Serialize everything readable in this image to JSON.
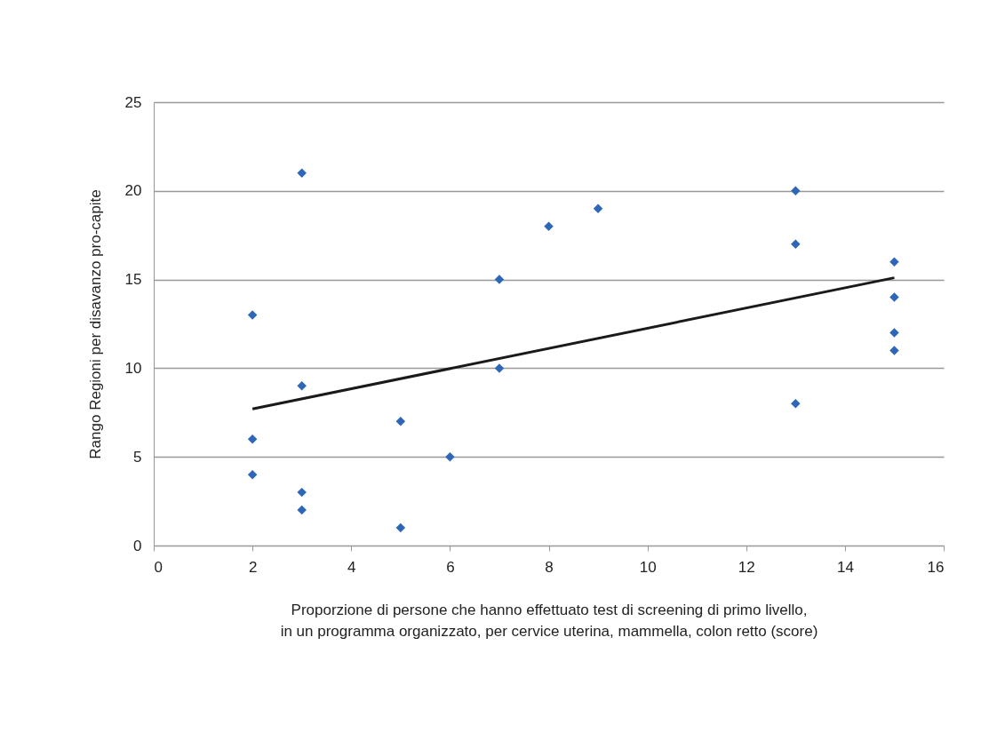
{
  "chart_data": {
    "type": "scatter",
    "xlabel": "Proporzione di persone che hanno effettuato test di screening di primo livello,\nin un programma organizzato, per cervice uterina, mammella, colon retto (score)",
    "ylabel": "Rango Regioni per disavanzo pro-capite",
    "xlim": [
      0,
      16
    ],
    "xticks": [
      0,
      2,
      4,
      6,
      8,
      10,
      12,
      14,
      16
    ],
    "ylim": [
      0,
      25
    ],
    "yticks": [
      0,
      5,
      10,
      15,
      20,
      25
    ],
    "grid": "y",
    "series": [
      {
        "marker": "diamond",
        "color": "#2e67b8",
        "x": [
          2,
          2,
          2,
          3,
          3,
          3,
          3,
          5,
          5,
          6,
          7,
          7,
          8,
          9,
          13,
          13,
          13,
          15,
          15,
          15,
          15
        ],
        "values": [
          13,
          6,
          4,
          21,
          9,
          3,
          2,
          7,
          1,
          5,
          15,
          10,
          18,
          19,
          20,
          17,
          8,
          16,
          14,
          12,
          11
        ]
      },
      {
        "type": "line",
        "color": "#1a1a1a",
        "x": [
          2,
          15
        ],
        "values": [
          7.7,
          15.1
        ]
      }
    ]
  }
}
